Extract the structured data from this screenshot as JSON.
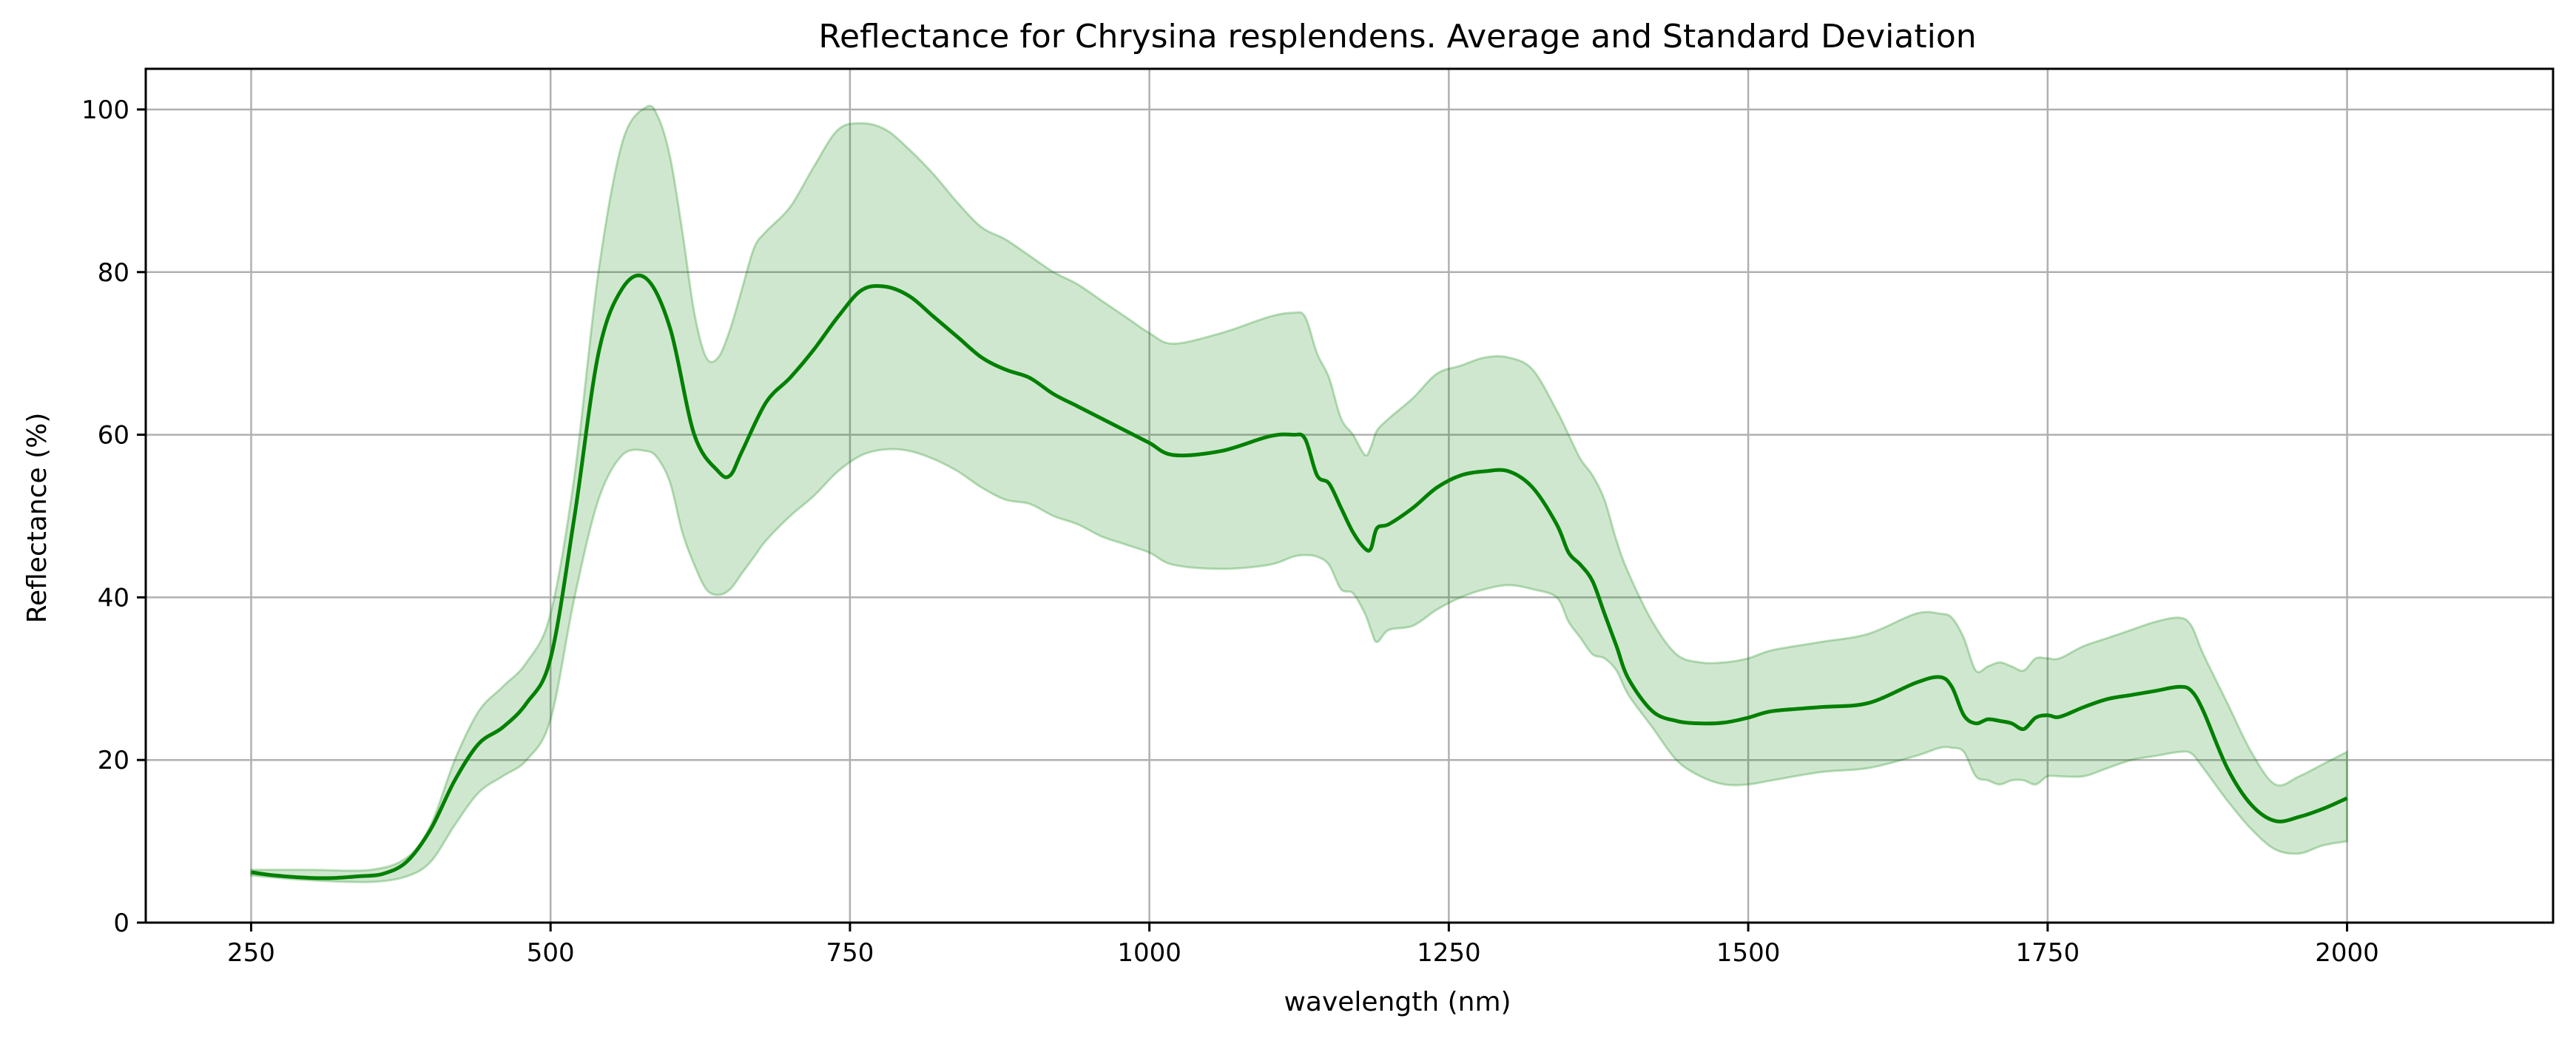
{
  "chart_data": {
    "type": "line",
    "title": "Reflectance for Chrysina resplendens. Average and Standard Deviation",
    "xlabel": "wavelength (nm)",
    "ylabel": "Reflectance (%)",
    "xlim": [
      162,
      2172
    ],
    "ylim": [
      0,
      105
    ],
    "xticks": [
      250,
      500,
      750,
      1000,
      1250,
      1500,
      1750,
      2000
    ],
    "yticks": [
      0,
      20,
      40,
      60,
      80,
      100
    ],
    "grid": true,
    "colors": {
      "mean": "#008000",
      "band": "#008000"
    },
    "series": [
      {
        "role": "average",
        "x": [
          250,
          270,
          300,
          320,
          340,
          360,
          380,
          400,
          420,
          440,
          460,
          480,
          500,
          520,
          540,
          560,
          580,
          600,
          620,
          640,
          650,
          660,
          680,
          700,
          720,
          740,
          760,
          780,
          800,
          820,
          840,
          860,
          880,
          900,
          920,
          940,
          960,
          980,
          1000,
          1020,
          1060,
          1100,
          1120,
          1130,
          1140,
          1150,
          1160,
          1170,
          1180,
          1185,
          1190,
          1200,
          1220,
          1240,
          1260,
          1280,
          1300,
          1320,
          1340,
          1350,
          1360,
          1370,
          1380,
          1390,
          1400,
          1420,
          1440,
          1460,
          1480,
          1500,
          1520,
          1560,
          1600,
          1640,
          1660,
          1670,
          1680,
          1690,
          1700,
          1710,
          1720,
          1730,
          1740,
          1750,
          1760,
          1780,
          1800,
          1820,
          1840,
          1860,
          1870,
          1880,
          1900,
          1920,
          1940,
          1960,
          1980,
          2000
        ],
        "values": [
          6.2,
          5.8,
          5.5,
          5.5,
          5.7,
          6.0,
          7.5,
          11.5,
          17.5,
          22.0,
          24.0,
          27.0,
          32.5,
          50,
          70,
          78,
          79.2,
          73,
          60,
          55.5,
          55,
          58,
          64,
          67,
          70.5,
          74.5,
          77.8,
          78.2,
          77,
          74.5,
          72,
          69.5,
          68,
          67,
          65,
          63.5,
          62,
          60.5,
          59,
          57.5,
          58,
          59.8,
          60,
          59.5,
          55,
          54,
          51,
          48,
          46,
          46,
          48.5,
          49,
          51,
          53.5,
          55,
          55.5,
          55.5,
          53.5,
          49,
          45.5,
          44,
          42,
          38,
          34,
          30,
          26,
          24.8,
          24.5,
          24.6,
          25.2,
          26,
          26.5,
          27,
          29.5,
          30.2,
          29,
          25.5,
          24.5,
          25,
          24.8,
          24.5,
          23.8,
          25.2,
          25.5,
          25.3,
          26.5,
          27.5,
          28,
          28.5,
          29,
          28.5,
          26,
          19,
          14.5,
          12.5,
          13,
          14,
          15.3
        ]
      },
      {
        "role": "upper",
        "x": [
          250,
          300,
          350,
          380,
          400,
          420,
          440,
          460,
          480,
          500,
          520,
          540,
          560,
          580,
          590,
          600,
          610,
          620,
          630,
          640,
          650,
          660,
          670,
          680,
          700,
          720,
          740,
          760,
          780,
          800,
          820,
          840,
          860,
          880,
          900,
          920,
          940,
          960,
          980,
          1000,
          1020,
          1060,
          1100,
          1120,
          1130,
          1140,
          1150,
          1160,
          1170,
          1180,
          1185,
          1190,
          1200,
          1220,
          1240,
          1260,
          1280,
          1300,
          1320,
          1340,
          1350,
          1360,
          1370,
          1380,
          1390,
          1400,
          1420,
          1440,
          1460,
          1480,
          1500,
          1520,
          1560,
          1600,
          1640,
          1660,
          1670,
          1680,
          1690,
          1700,
          1710,
          1720,
          1730,
          1740,
          1750,
          1760,
          1780,
          1800,
          1820,
          1840,
          1860,
          1870,
          1880,
          1900,
          1920,
          1940,
          1960,
          1980,
          2000
        ],
        "values": [
          6.5,
          6.5,
          6.5,
          8,
          12,
          20,
          26,
          29,
          32,
          38,
          55,
          80,
          96,
          100.3,
          99,
          94,
          85,
          75,
          69.5,
          69.5,
          73,
          78,
          83,
          85,
          88,
          93,
          97.5,
          98.3,
          97.5,
          95,
          92,
          88.5,
          85.5,
          84,
          82,
          80,
          78.5,
          76.5,
          74.5,
          72.5,
          71.2,
          72.5,
          74.5,
          75,
          74.5,
          70,
          67,
          62,
          60,
          57.5,
          58.5,
          60.5,
          62,
          64.5,
          67.5,
          68.5,
          69.5,
          69.5,
          68,
          63,
          60,
          57,
          55,
          52,
          47,
          43,
          37,
          33,
          32,
          32,
          32.5,
          33.5,
          34.5,
          35.5,
          38,
          38,
          37.5,
          35,
          31,
          31.5,
          32,
          31.5,
          31,
          32.5,
          32.5,
          32.5,
          34,
          35,
          36,
          37,
          37.5,
          36.5,
          33,
          27,
          21,
          17,
          18,
          19.5,
          21
        ]
      },
      {
        "role": "lower",
        "x": [
          250,
          300,
          350,
          380,
          400,
          420,
          440,
          460,
          480,
          500,
          520,
          540,
          560,
          580,
          590,
          600,
          610,
          620,
          630,
          640,
          650,
          660,
          670,
          680,
          700,
          720,
          740,
          760,
          780,
          800,
          820,
          840,
          860,
          880,
          900,
          920,
          940,
          960,
          980,
          1000,
          1020,
          1060,
          1100,
          1120,
          1130,
          1140,
          1150,
          1160,
          1170,
          1180,
          1185,
          1190,
          1200,
          1220,
          1240,
          1260,
          1280,
          1300,
          1320,
          1340,
          1350,
          1360,
          1370,
          1380,
          1390,
          1400,
          1420,
          1440,
          1460,
          1480,
          1500,
          1520,
          1560,
          1600,
          1640,
          1660,
          1670,
          1680,
          1690,
          1700,
          1710,
          1720,
          1730,
          1740,
          1750,
          1760,
          1780,
          1800,
          1820,
          1840,
          1860,
          1870,
          1880,
          1900,
          1920,
          1940,
          1960,
          1980,
          2000
        ],
        "values": [
          5.8,
          5.2,
          5.0,
          5.7,
          7.5,
          12,
          16,
          18,
          20,
          25,
          40,
          52,
          57.5,
          58,
          57,
          54,
          48,
          44,
          41,
          40.3,
          41,
          43,
          45,
          47,
          50,
          52.5,
          55.5,
          57.5,
          58.2,
          58,
          57,
          55.5,
          53.5,
          52,
          51.5,
          50,
          49,
          47.5,
          46.5,
          45.5,
          44,
          43.5,
          44,
          45,
          45.2,
          45,
          44,
          41,
          40.5,
          38,
          36,
          34.5,
          36,
          36.5,
          38.5,
          40,
          41,
          41.5,
          41,
          40,
          37,
          35,
          33,
          32.5,
          31,
          28,
          24,
          20,
          18,
          17,
          17,
          17.5,
          18.5,
          19,
          20.5,
          21.5,
          21.5,
          21,
          18,
          17.5,
          17,
          17.5,
          17.5,
          17,
          18,
          18,
          18,
          19,
          20,
          20.5,
          21,
          20.8,
          19,
          15,
          11.5,
          9,
          8.5,
          9.5,
          10
        ]
      }
    ]
  }
}
